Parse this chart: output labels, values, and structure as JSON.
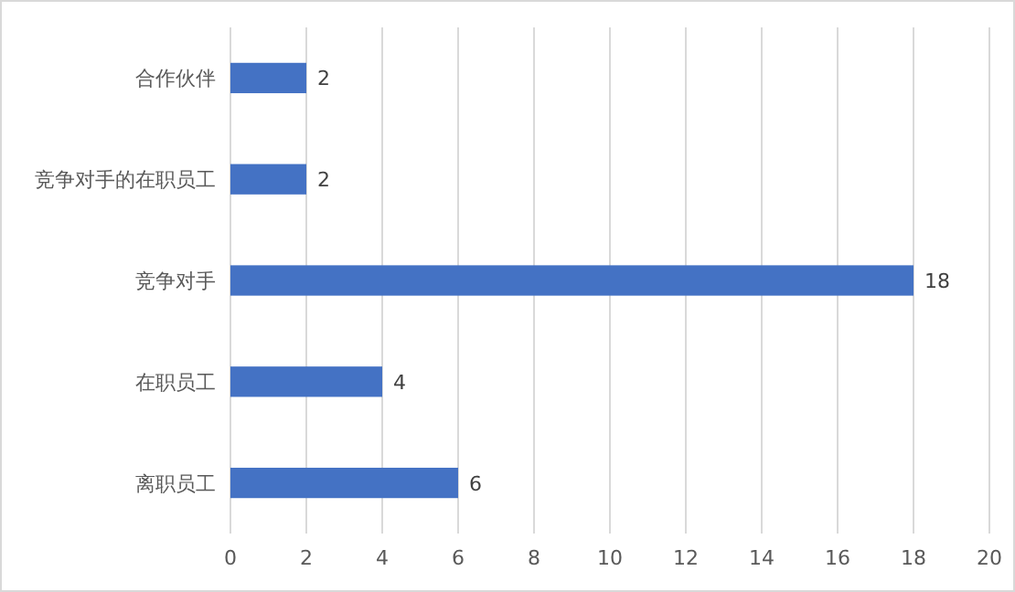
{
  "chart_data": {
    "type": "bar",
    "orientation": "horizontal",
    "categories": [
      "合作伙伴",
      "竞争对手的在职员工",
      "竞争对手",
      "在职员工",
      "离职员工"
    ],
    "values": [
      2,
      2,
      18,
      4,
      6
    ],
    "color": "#4472c4",
    "xlim": [
      0,
      20
    ],
    "xticks": [
      0,
      2,
      4,
      6,
      8,
      10,
      12,
      14,
      16,
      18,
      20
    ],
    "grid": "x",
    "data_labels": true
  }
}
